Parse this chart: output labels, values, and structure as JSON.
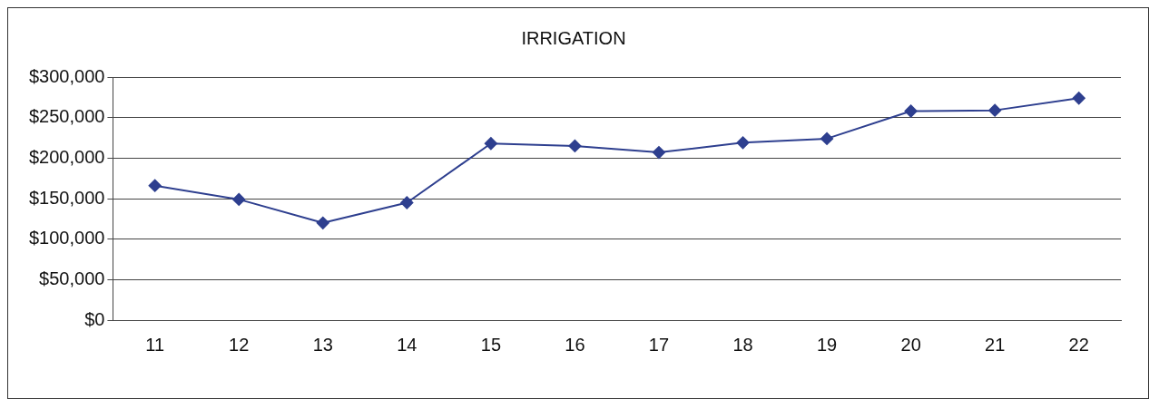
{
  "chart_data": {
    "type": "line",
    "title": "IRRIGATION",
    "categories": [
      "11",
      "12",
      "13",
      "14",
      "15",
      "16",
      "17",
      "18",
      "19",
      "20",
      "21",
      "22"
    ],
    "series": [
      {
        "color": "#2e3f8f",
        "values": [
          166000,
          149000,
          120000,
          145000,
          218000,
          215000,
          207000,
          219000,
          224000,
          258000,
          259000,
          274000
        ]
      }
    ],
    "ylim": [
      0,
      300000
    ],
    "yticks": [
      {
        "value": 0,
        "label": "$0"
      },
      {
        "value": 50000,
        "label": "$50,000"
      },
      {
        "value": 100000,
        "label": "$100,000"
      },
      {
        "value": 150000,
        "label": "$150,000"
      },
      {
        "value": 200000,
        "label": "$200,000"
      },
      {
        "value": 250000,
        "label": "$250,000"
      },
      {
        "value": 300000,
        "label": "$300,000"
      }
    ],
    "grid": "y",
    "legend": false,
    "marker": "diamond",
    "line_style": "solid"
  }
}
